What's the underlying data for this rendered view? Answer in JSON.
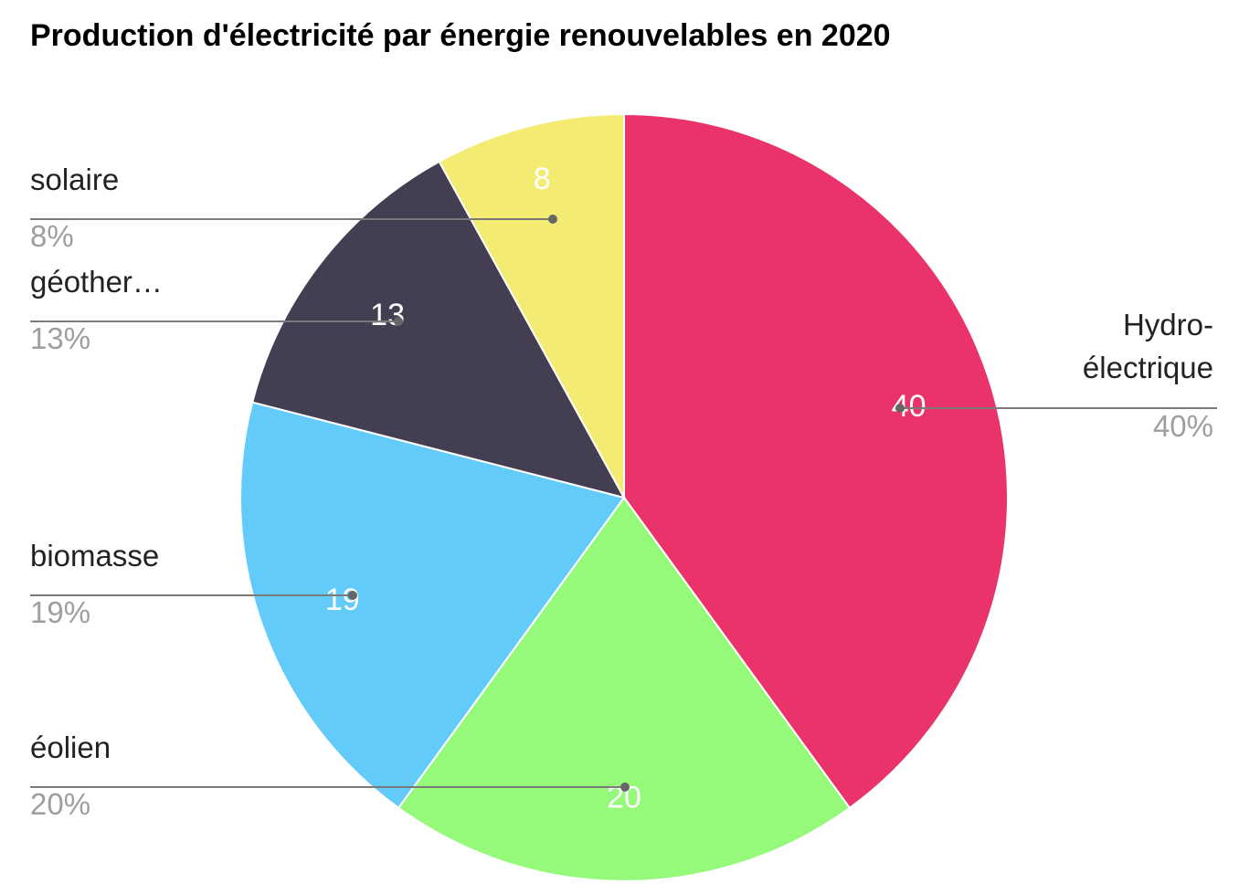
{
  "chart_data": {
    "type": "pie",
    "title": "Production d'électricité par énergie renouvelables en 2020",
    "slices": [
      {
        "key": "hydro",
        "label": "Hydro-électrique",
        "label_lines": [
          "Hydro-",
          "électrique"
        ],
        "value": 40,
        "value_label": "40",
        "percent": "40%",
        "color": "#E9336A"
      },
      {
        "key": "eolien",
        "label": "éolien",
        "label_lines": [
          "éolien"
        ],
        "value": 20,
        "value_label": "20",
        "percent": "20%",
        "color": "#95F97A"
      },
      {
        "key": "biomasse",
        "label": "biomasse",
        "label_lines": [
          "biomasse"
        ],
        "value": 19,
        "value_label": "19",
        "percent": "19%",
        "color": "#62CBF9"
      },
      {
        "key": "geothermie",
        "label": "géother…",
        "label_lines": [
          "géother…"
        ],
        "value": 13,
        "value_label": "13",
        "percent": "13%",
        "color": "#433E52"
      },
      {
        "key": "solaire",
        "label": "solaire",
        "label_lines": [
          "solaire"
        ],
        "value": 8,
        "value_label": "8",
        "percent": "8%",
        "color": "#F4EB72"
      }
    ],
    "start_angle_deg": 0,
    "direction": "clockwise",
    "legend": "outside labels with leader lines"
  }
}
